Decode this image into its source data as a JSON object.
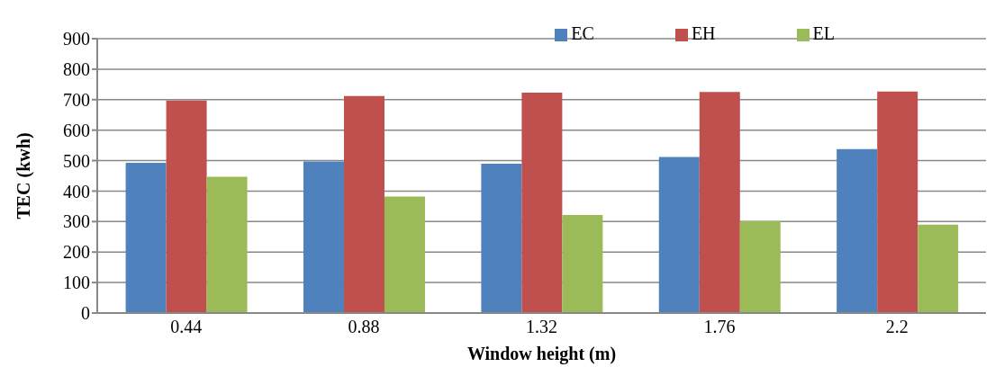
{
  "chart_data": {
    "type": "bar",
    "xlabel": "Window height (m)",
    "ylabel": "TEC (kwh)",
    "categories": [
      "0.44",
      "0.88",
      "1.32",
      "1.76",
      "2.2"
    ],
    "series": [
      {
        "name": "EC",
        "color": "#4f81bd",
        "values": [
          493,
          497,
          490,
          512,
          538
        ]
      },
      {
        "name": "EH",
        "color": "#c0504d",
        "values": [
          697,
          712,
          723,
          725,
          727
        ]
      },
      {
        "name": "EL",
        "color": "#9bbb59",
        "values": [
          447,
          382,
          322,
          302,
          290
        ]
      }
    ],
    "ylim": [
      0,
      900
    ],
    "yticks": [
      0,
      100,
      200,
      300,
      400,
      500,
      600,
      700,
      800,
      900
    ],
    "grid": "y",
    "legend": "top right"
  }
}
